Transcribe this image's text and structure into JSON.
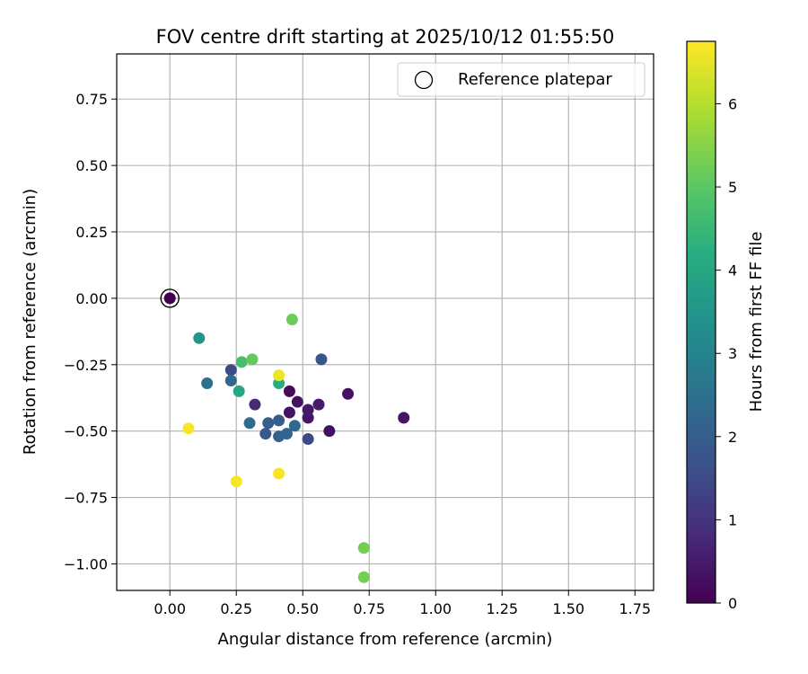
{
  "chart_data": {
    "type": "scatter",
    "title": "FOV centre drift starting at 2025/10/12 01:55:50",
    "xlabel": "Angular distance from reference (arcmin)",
    "ylabel": "Rotation from reference (arcmin)",
    "xlim": [
      -0.2,
      1.82
    ],
    "ylim": [
      -1.1,
      0.92
    ],
    "xticks": [
      0.0,
      0.25,
      0.5,
      0.75,
      1.0,
      1.25,
      1.5,
      1.75
    ],
    "xtick_labels": [
      "0.00",
      "0.25",
      "0.50",
      "0.75",
      "1.00",
      "1.25",
      "1.50",
      "1.75"
    ],
    "yticks": [
      0.75,
      0.5,
      0.25,
      0.0,
      -0.25,
      -0.5,
      -0.75,
      -1.0
    ],
    "ytick_labels": [
      "0.75",
      "0.50",
      "0.25",
      "0.00",
      "−0.25",
      "−0.50",
      "−0.75",
      "−1.00"
    ],
    "grid": true,
    "legend": {
      "placement": "top-right",
      "label": "Reference platepar"
    },
    "reference_point": {
      "x": 0.0,
      "y": 0.0
    },
    "colorbar": {
      "label": "Hours from first FF file",
      "range": [
        0,
        6.75
      ],
      "colormap": "viridis",
      "ticks": [
        0,
        1,
        2,
        3,
        4,
        5,
        6
      ],
      "tick_labels": [
        "0",
        "1",
        "2",
        "3",
        "4",
        "5",
        "6"
      ]
    },
    "points": [
      {
        "x": 0.0,
        "y": 0.0,
        "t": 0.0
      },
      {
        "x": 0.45,
        "y": -0.35,
        "t": 0.2
      },
      {
        "x": 0.48,
        "y": -0.39,
        "t": 0.3
      },
      {
        "x": 0.45,
        "y": -0.43,
        "t": 0.35
      },
      {
        "x": 0.52,
        "y": -0.45,
        "t": 0.4
      },
      {
        "x": 0.52,
        "y": -0.42,
        "t": 0.45
      },
      {
        "x": 0.56,
        "y": -0.4,
        "t": 0.5
      },
      {
        "x": 0.6,
        "y": -0.5,
        "t": 0.25
      },
      {
        "x": 0.67,
        "y": -0.36,
        "t": 0.3
      },
      {
        "x": 0.88,
        "y": -0.45,
        "t": 0.4
      },
      {
        "x": 0.32,
        "y": -0.4,
        "t": 0.8
      },
      {
        "x": 0.23,
        "y": -0.27,
        "t": 1.5
      },
      {
        "x": 0.52,
        "y": -0.53,
        "t": 1.5
      },
      {
        "x": 0.57,
        "y": -0.23,
        "t": 1.8
      },
      {
        "x": 0.36,
        "y": -0.51,
        "t": 1.9
      },
      {
        "x": 0.37,
        "y": -0.47,
        "t": 2.0
      },
      {
        "x": 0.41,
        "y": -0.46,
        "t": 2.0
      },
      {
        "x": 0.41,
        "y": -0.52,
        "t": 2.1
      },
      {
        "x": 0.44,
        "y": -0.51,
        "t": 2.2
      },
      {
        "x": 0.47,
        "y": -0.48,
        "t": 2.3
      },
      {
        "x": 0.3,
        "y": -0.47,
        "t": 2.4
      },
      {
        "x": 0.23,
        "y": -0.31,
        "t": 2.3
      },
      {
        "x": 0.14,
        "y": -0.32,
        "t": 2.5
      },
      {
        "x": 0.11,
        "y": -0.15,
        "t": 3.5
      },
      {
        "x": 0.26,
        "y": -0.35,
        "t": 4.0
      },
      {
        "x": 0.41,
        "y": -0.32,
        "t": 4.2
      },
      {
        "x": 0.27,
        "y": -0.24,
        "t": 4.7
      },
      {
        "x": 0.31,
        "y": -0.23,
        "t": 5.1
      },
      {
        "x": 0.46,
        "y": -0.08,
        "t": 5.2
      },
      {
        "x": 0.73,
        "y": -0.94,
        "t": 5.3
      },
      {
        "x": 0.73,
        "y": -1.05,
        "t": 5.3
      },
      {
        "x": 0.41,
        "y": -0.29,
        "t": 6.6
      },
      {
        "x": 0.07,
        "y": -0.49,
        "t": 6.7
      },
      {
        "x": 0.25,
        "y": -0.69,
        "t": 6.7
      },
      {
        "x": 0.41,
        "y": -0.66,
        "t": 6.7
      }
    ]
  }
}
